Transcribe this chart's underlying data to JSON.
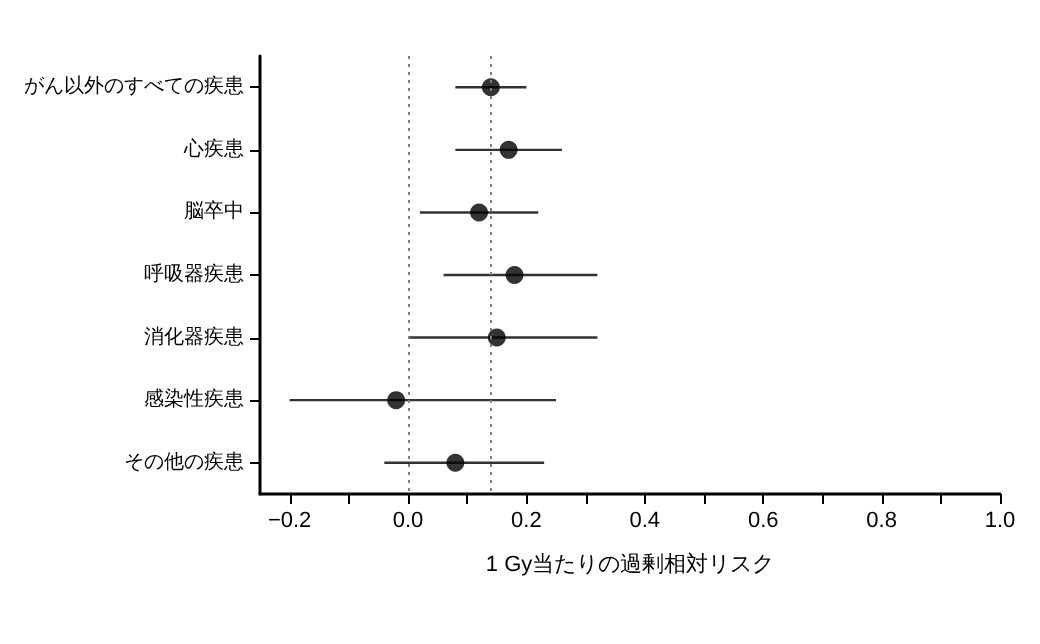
{
  "chart_data": {
    "type": "scatter",
    "orientation": "horizontal",
    "xlabel": "1 Gy当たりの過剰相対リスク",
    "categories": [
      "がん以外のすべての疾患",
      "心疾患",
      "脳卒中",
      "呼吸器疾患",
      "消化器疾患",
      "感染性疾患",
      "その他の疾患"
    ],
    "values": [
      0.14,
      0.17,
      0.12,
      0.18,
      0.15,
      -0.02,
      0.08
    ],
    "errors": [
      [
        0.08,
        0.2
      ],
      [
        0.08,
        0.26
      ],
      [
        0.02,
        0.22
      ],
      [
        0.06,
        0.32
      ],
      [
        0.0,
        0.32
      ],
      [
        -0.2,
        0.25
      ],
      [
        -0.04,
        0.23
      ]
    ],
    "color": "#000000",
    "marker": "circle",
    "xlim": [
      -0.25,
      1.0
    ],
    "xticks": [
      {
        "value": -0.2,
        "label": "−0.2"
      },
      {
        "value": -0.1,
        "label": null
      },
      "0.0",
      {
        "value": 0.1,
        "label": null
      },
      {
        "value": 0.2,
        "label": "0.2"
      },
      {
        "value": 0.3,
        "label": null
      },
      {
        "value": 0.4,
        "label": "0.4"
      },
      {
        "value": 0.5,
        "label": null
      },
      {
        "value": 0.6,
        "label": "0.6"
      },
      {
        "value": 0.7,
        "label": null
      },
      {
        "value": 0.8,
        "label": "0.8"
      },
      {
        "value": 0.9,
        "label": null
      },
      {
        "value": 1.0,
        "label": "1.0"
      }
    ],
    "ref_lines": [
      {
        "axis": "x",
        "value": 0,
        "color": "#808080",
        "line_style": "dotted"
      },
      {
        "axis": "x",
        "value": 0.14,
        "color": "#808080",
        "line_style": "dotted"
      }
    ],
    "grid": false
  }
}
